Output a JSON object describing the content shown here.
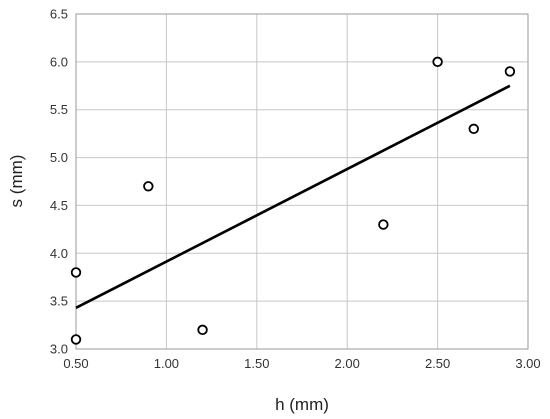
{
  "chart_data": {
    "type": "scatter",
    "xlabel": "h (mm)",
    "ylabel": "s (mm)",
    "xlim": [
      0.5,
      3.0
    ],
    "ylim": [
      3.0,
      6.5
    ],
    "xticks": [
      "0.50",
      "1.00",
      "1.50",
      "2.00",
      "2.50",
      "3.00"
    ],
    "yticks": [
      "3.0",
      "3.5",
      "4.0",
      "4.5",
      "5.0",
      "5.5",
      "6.0",
      "6.5"
    ],
    "grid": true,
    "legend": "none",
    "marker": "open-circle",
    "points": [
      {
        "x": 0.5,
        "y": 3.8
      },
      {
        "x": 0.5,
        "y": 3.1
      },
      {
        "x": 0.9,
        "y": 4.7
      },
      {
        "x": 1.2,
        "y": 3.2
      },
      {
        "x": 2.2,
        "y": 4.3
      },
      {
        "x": 2.5,
        "y": 6.0
      },
      {
        "x": 2.7,
        "y": 5.3
      },
      {
        "x": 2.9,
        "y": 5.9
      }
    ],
    "trendline": {
      "type": "linear",
      "x": [
        0.5,
        2.9
      ],
      "y": [
        3.43,
        5.75
      ]
    }
  }
}
